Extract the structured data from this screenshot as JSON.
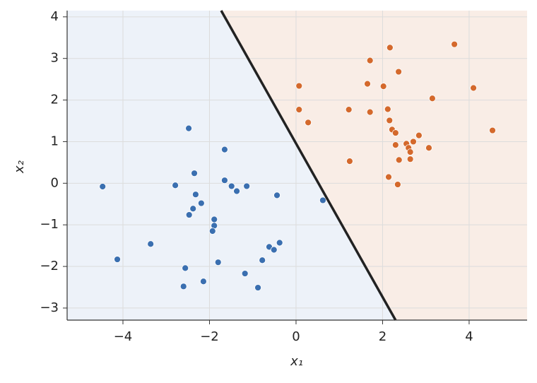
{
  "chart_data": {
    "type": "scatter",
    "x_label": "x₁",
    "y_label": "x₂",
    "xlim": [
      -5.29,
      5.34
    ],
    "ylim": [
      -3.29,
      4.15
    ],
    "xticks": [
      {
        "value": -4,
        "label": "−4"
      },
      {
        "value": -2,
        "label": "−2"
      },
      0,
      2,
      4
    ],
    "yticks": [
      {
        "value": -3,
        "label": "−3"
      },
      {
        "value": -2,
        "label": "−2"
      },
      {
        "value": -1,
        "label": "−1"
      },
      0,
      1,
      2,
      3,
      4
    ],
    "grid": true,
    "region_colors": [
      "#edf2f9",
      "#f9ede6"
    ],
    "boundary": {
      "color": "#222222",
      "x": [
        -1.73,
        2.3
      ],
      "y": [
        4.15,
        -3.29
      ]
    },
    "series": [
      {
        "color": "#3a6fb0",
        "x": [
          -4.47,
          -4.13,
          -3.36,
          -2.79,
          -2.48,
          -2.35,
          -2.32,
          -2.38,
          -2.47,
          -2.19,
          -2.56,
          -2.6,
          -2.14,
          -1.89,
          -1.89,
          -1.93,
          -1.8,
          -1.65,
          -1.65,
          -1.49,
          -1.37,
          -1.14,
          -1.18,
          -0.88,
          -0.78,
          -0.62,
          -0.51,
          -0.38,
          -0.44,
          0.62
        ],
        "y": [
          -0.08,
          -1.83,
          -1.46,
          -0.05,
          1.32,
          0.24,
          -0.27,
          -0.61,
          -0.76,
          -0.48,
          -2.04,
          -2.48,
          -2.36,
          -0.87,
          -1.02,
          -1.15,
          -1.9,
          0.81,
          0.07,
          -0.07,
          -0.19,
          -0.07,
          -2.17,
          -2.51,
          -1.85,
          -1.53,
          -1.6,
          -1.43,
          -0.29,
          -0.41
        ]
      },
      {
        "color": "#d4692c",
        "x": [
          0.07,
          0.07,
          0.28,
          1.22,
          1.24,
          1.71,
          1.65,
          1.71,
          2.02,
          2.17,
          2.37,
          2.12,
          2.16,
          2.22,
          2.3,
          2.3,
          2.14,
          2.35,
          2.38,
          2.55,
          2.6,
          2.64,
          2.64,
          2.71,
          2.84,
          3.07,
          3.15,
          3.66,
          4.1,
          4.54
        ],
        "y": [
          2.34,
          1.77,
          1.46,
          1.77,
          0.53,
          2.95,
          2.39,
          1.71,
          2.33,
          3.26,
          2.68,
          1.78,
          1.51,
          1.29,
          1.21,
          0.92,
          0.15,
          -0.03,
          0.56,
          0.95,
          0.85,
          0.75,
          0.58,
          1.0,
          1.15,
          0.85,
          2.04,
          3.34,
          2.29,
          1.27
        ]
      }
    ]
  }
}
